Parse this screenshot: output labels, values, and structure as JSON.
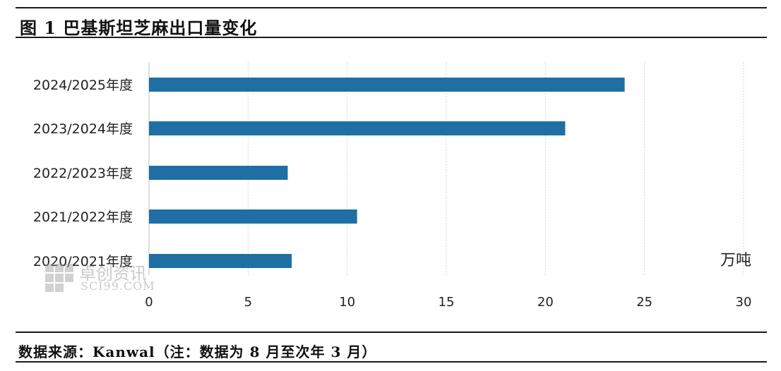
{
  "title": "图 1 巴基斯坦芝麻出口量变化",
  "source": "数据来源：Kanwal（注：数据为 8 月至次年 3 月）",
  "watermark": {
    "name": "卓创资讯",
    "site": "SCI99.COM"
  },
  "colors": {
    "bar": "#1f6fa5",
    "grid": "#d4d4d4",
    "text": "#222222"
  },
  "chart_data": {
    "type": "bar",
    "orientation": "horizontal",
    "title": "图 1 巴基斯坦芝麻出口量变化",
    "unit_label": "万吨",
    "categories": [
      "2024/2025年度",
      "2023/2024年度",
      "2022/2023年度",
      "2021/2022年度",
      "2020/2021年度"
    ],
    "values": [
      24.0,
      21.0,
      7.0,
      10.5,
      7.2
    ],
    "xlim": [
      0,
      30
    ],
    "xticks": [
      "0",
      "5",
      "10",
      "15",
      "20",
      "25",
      "30"
    ],
    "grid": "vertical-dashed"
  }
}
